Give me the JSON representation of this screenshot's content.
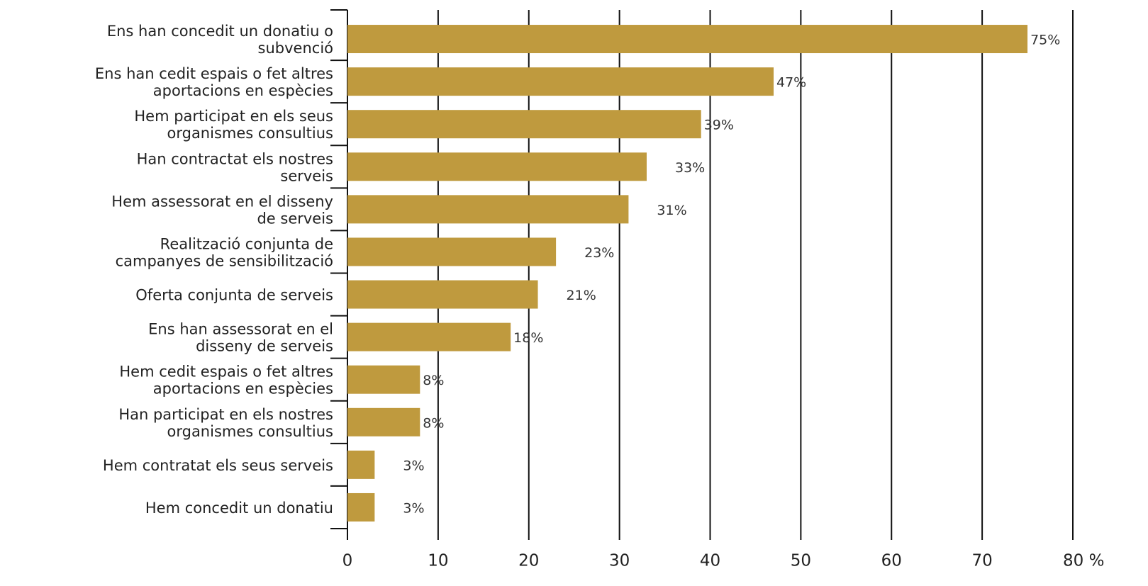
{
  "chart_data": {
    "type": "barh",
    "categories": [
      "Ens han concedit un donatiu o\nsubvenció",
      "Ens han cedit espais o fet altres\naportacions en espècies",
      "Hem participat en els seus\norganismes consultius",
      "Han contractat els nostres\nserveis",
      "Hem assessorat en el disseny\nde serveis",
      "Realització conjunta de\ncampanyes de sensibilització",
      "Oferta conjunta de serveis",
      "Ens han assessorat en el\ndisseny de serveis",
      "Hem cedit espais o fet altres\naportacions en espècies",
      "Han participat en els nostres\norganismes consultius",
      "Hem contratat els seus serveis",
      "Hem concedit un donatiu"
    ],
    "values": [
      75,
      47,
      39,
      33,
      31,
      23,
      21,
      18,
      8,
      8,
      3,
      3
    ],
    "value_labels": [
      "75%",
      "47%",
      "39%",
      "33%",
      "31%",
      "23%",
      "21%",
      "18%",
      "8%",
      "8%",
      "3%",
      "3%"
    ],
    "color": "#bf9a3e",
    "xlim": [
      0,
      80
    ],
    "xticks": [
      0,
      10,
      20,
      30,
      40,
      50,
      60,
      70,
      {
        "value": 80,
        "label": "80 %"
      }
    ],
    "grid": true
  }
}
